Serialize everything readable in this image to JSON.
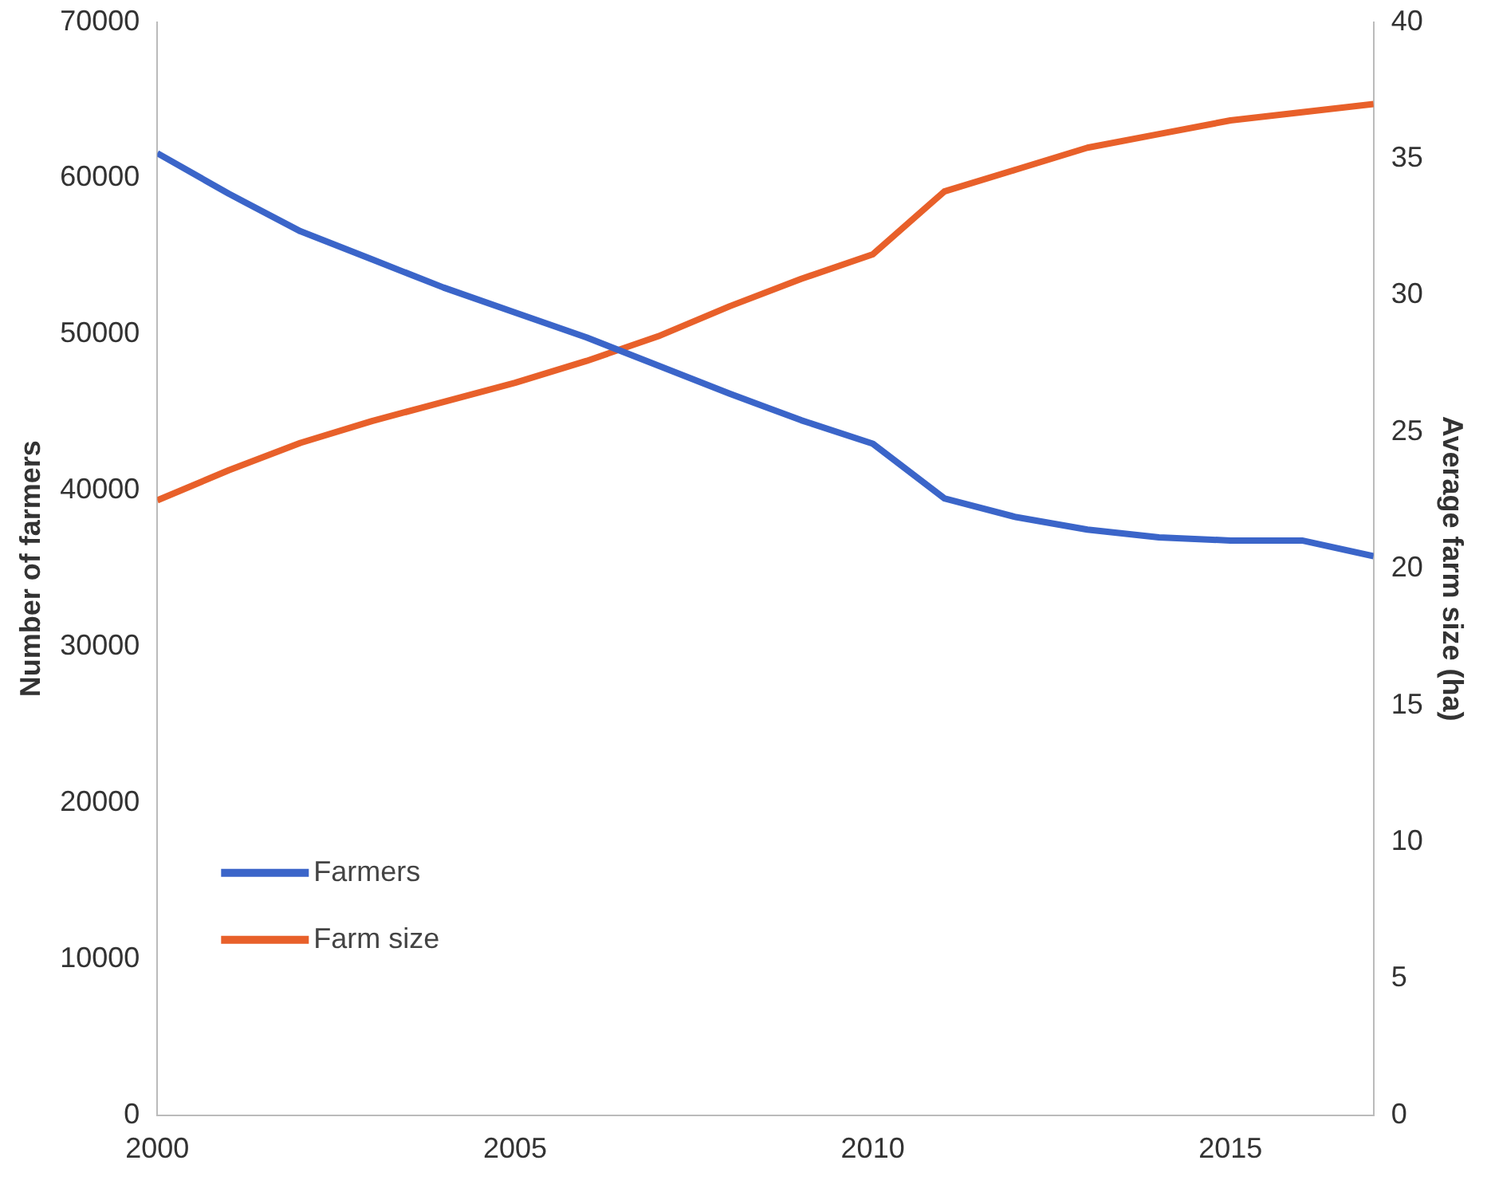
{
  "chart_data": {
    "type": "line",
    "xlabel": null,
    "ylabel": "Number of farmers",
    "y2label": "Average farm size (ha)",
    "x": [
      2000,
      2001,
      2002,
      2003,
      2004,
      2005,
      2006,
      2007,
      2008,
      2009,
      2010,
      2011,
      2012,
      2013,
      2014,
      2015,
      2016,
      2017
    ],
    "series": [
      {
        "name": "Farmers",
        "color": "#3b65c9",
        "values": [
          61600,
          59000,
          56600,
          54800,
          53000,
          51400,
          49800,
          48000,
          46200,
          44500,
          43000,
          39500,
          38300,
          37500,
          37000,
          36800,
          36800,
          35800
        ]
      },
      {
        "name": "Farm size",
        "color": "#e8602a",
        "axis": "y2",
        "values": [
          22.5,
          23.6,
          24.6,
          25.4,
          26.1,
          26.8,
          27.6,
          28.5,
          29.6,
          30.6,
          31.5,
          33.8,
          34.6,
          35.4,
          35.9,
          36.4,
          36.7,
          37.0
        ]
      }
    ],
    "xlim": [
      2000,
      2017
    ],
    "xticks": [
      2000,
      2005,
      2010,
      2015
    ],
    "ylim": [
      0,
      70000
    ],
    "yticks": [
      0,
      10000,
      20000,
      30000,
      40000,
      50000,
      60000,
      70000
    ],
    "y2lim": [
      0,
      40
    ],
    "y2ticks": [
      0,
      5,
      10,
      15,
      20,
      25,
      30,
      35,
      40
    ],
    "grid": false,
    "legend": "bottom left",
    "marker": "none",
    "line_style": "solid"
  }
}
